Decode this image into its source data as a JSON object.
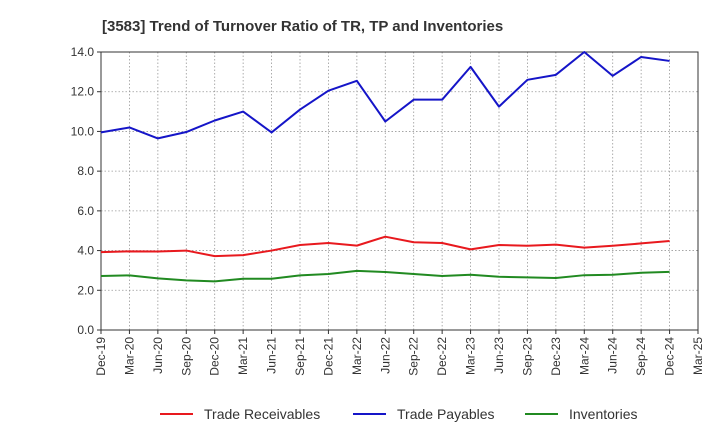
{
  "chart_data": {
    "type": "line",
    "title": "[3583]  Trend of Turnover Ratio of TR, TP and Inventories",
    "xlabel": "",
    "ylabel": "",
    "ylim": [
      0,
      14
    ],
    "yticks": [
      "0.0",
      "2.0",
      "4.0",
      "6.0",
      "8.0",
      "10.0",
      "12.0",
      "14.0"
    ],
    "grid": true,
    "legend_position": "bottom",
    "x_tick_labels": [
      "Dec-19",
      "Mar-20",
      "Jun-20",
      "Sep-20",
      "Dec-20",
      "Mar-21",
      "Jun-21",
      "Sep-21",
      "Dec-21",
      "Mar-22",
      "Jun-22",
      "Sep-22",
      "Dec-22",
      "Mar-23",
      "Jun-23",
      "Sep-23",
      "Dec-23",
      "Mar-24",
      "Jun-24",
      "Sep-24",
      "Dec-24",
      "Mar-25"
    ],
    "categories": [
      "Dec-19",
      "Mar-20",
      "Jun-20",
      "Sep-20",
      "Dec-20",
      "Mar-21",
      "Jun-21",
      "Sep-21",
      "Dec-21",
      "Mar-22",
      "Jun-22",
      "Sep-22",
      "Dec-22",
      "Mar-23",
      "Jun-23",
      "Sep-23",
      "Dec-23",
      "Mar-24",
      "Jun-24",
      "Sep-24",
      "Dec-24"
    ],
    "series": [
      {
        "name": "Trade Receivables",
        "color": "#e8191e",
        "values": [
          3.92,
          3.96,
          3.95,
          4.0,
          3.72,
          3.77,
          4.0,
          4.28,
          4.38,
          4.25,
          4.7,
          4.42,
          4.38,
          4.06,
          4.28,
          4.24,
          4.3,
          4.15,
          4.24,
          4.36,
          4.48
        ]
      },
      {
        "name": "Trade Payables",
        "color": "#1515c8",
        "values": [
          9.95,
          10.2,
          9.65,
          9.97,
          10.55,
          11.0,
          9.95,
          11.1,
          12.05,
          12.55,
          10.5,
          11.6,
          11.6,
          13.25,
          11.25,
          12.6,
          12.85,
          14.0,
          12.8,
          13.75,
          13.55
        ]
      },
      {
        "name": "Inventories",
        "color": "#218a21",
        "values": [
          2.72,
          2.75,
          2.6,
          2.5,
          2.45,
          2.58,
          2.58,
          2.75,
          2.82,
          2.98,
          2.92,
          2.82,
          2.72,
          2.78,
          2.68,
          2.65,
          2.62,
          2.76,
          2.78,
          2.88,
          2.93
        ]
      }
    ]
  }
}
